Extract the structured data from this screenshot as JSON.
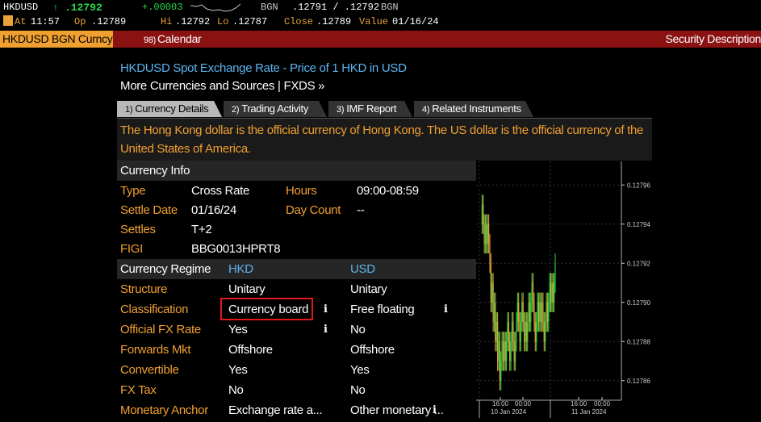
{
  "quote": {
    "ticker": "HKDUSD",
    "arrow": "↑",
    "last": ".12792",
    "change": "+.00003",
    "source1": "BGN",
    "bid_ask": ".12791 / .12792",
    "source2": "BGN",
    "at_label": "At",
    "time": "11:57",
    "op_label": "Op",
    "open": ".12789",
    "hi_label": "Hi",
    "high": ".12792",
    "lo_label": "Lo",
    "low": ".12787",
    "close_label": "Close",
    "close": ".12789",
    "value_label": "Value",
    "value_date": "01/16/24"
  },
  "func_bar": {
    "security": "HKDUSD BGN Curncy",
    "calendar_num": "98)",
    "calendar": "Calendar",
    "right_label": "Security Description"
  },
  "header": {
    "title": "HKDUSD Spot Exchange Rate - Price of 1 HKD in USD",
    "more": "More Currencies and Sources | FXDS »"
  },
  "tabs": [
    {
      "num": "1)",
      "label": "Currency Details"
    },
    {
      "num": "2)",
      "label": "Trading Activity"
    },
    {
      "num": "3)",
      "label": "IMF Report"
    },
    {
      "num": "4)",
      "label": "Related Instruments"
    }
  ],
  "description": "The Hong Kong dollar is the official currency of Hong Kong.  The US dollar is the official currency of the United States of America.",
  "currency_info": {
    "heading": "Currency Info",
    "type_label": "Type",
    "type_value": "Cross Rate",
    "hours_label": "Hours",
    "hours_value": "09:00-08:59",
    "settle_date_label": "Settle Date",
    "settle_date_value": "01/16/24",
    "day_count_label": "Day Count",
    "day_count_value": "--",
    "settles_label": "Settles",
    "settles_value": "T+2",
    "figi_label": "FIGI",
    "figi_value": "BBG0013HPRT8"
  },
  "regime": {
    "heading": "Currency Regime",
    "col1": "HKD",
    "col2": "USD",
    "rows": [
      {
        "label": "Structure",
        "hkd": "Unitary",
        "usd": "Unitary"
      },
      {
        "label": "Classification",
        "hkd": "Currency board",
        "usd": "Free floating"
      },
      {
        "label": "Official FX Rate",
        "hkd": "Yes",
        "usd": "No"
      },
      {
        "label": "Forwards Mkt",
        "hkd": "Offshore",
        "usd": "Offshore"
      },
      {
        "label": "Convertible",
        "hkd": "Yes",
        "usd": "Yes"
      },
      {
        "label": "FX Tax",
        "hkd": "No",
        "usd": "No"
      },
      {
        "label": "Monetary Anchor",
        "hkd": "Exchange rate a...",
        "usd": "Other monetary ..."
      }
    ],
    "info_glyph": "i"
  },
  "chart_data": {
    "type": "candlestick",
    "y_ticks": [
      "0.12796",
      "0.12794",
      "0.12792",
      "0.12790",
      "0.12788",
      "0.12786"
    ],
    "ylim": [
      0.12785,
      0.12797
    ],
    "x_time_labels": [
      "16:00",
      "00:00",
      "16:00",
      "00:00"
    ],
    "x_date_labels": [
      "10 Jan 2024",
      "11 Jan 2024"
    ],
    "up_color": "#2bd84a",
    "down_color": "#e8a33a",
    "grid": true
  },
  "colors": {
    "amber": "#f0a030",
    "blue": "#5bb4f0",
    "red_bar": "#8a1212",
    "highlight": "#e01818"
  }
}
